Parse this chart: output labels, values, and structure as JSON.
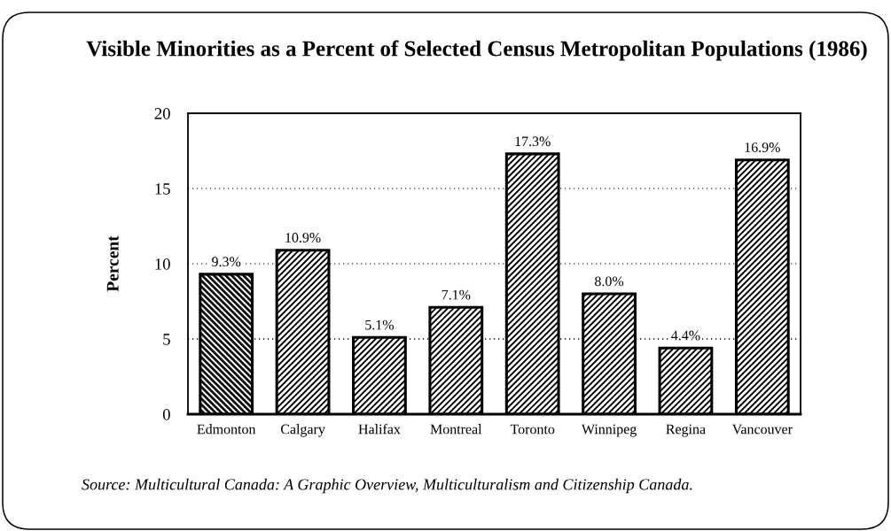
{
  "chart_data": {
    "type": "bar",
    "title": "Visible Minorities as a Percent of Selected Census Metropolitan Populations (1986)",
    "ylabel": "Percent",
    "categories": [
      "Edmonton",
      "Calgary",
      "Halifax",
      "Montreal",
      "Toronto",
      "Winnipeg",
      "Regina",
      "Vancouver"
    ],
    "values": [
      9.3,
      10.9,
      5.1,
      7.1,
      17.3,
      8.0,
      4.4,
      16.9
    ],
    "value_labels": [
      "9.3%",
      "10.9%",
      "5.1%",
      "7.1%",
      "17.3%",
      "8.0%",
      "4.4%",
      "16.9%"
    ],
    "colors": [
      "#111111",
      "#ffffff",
      "#ffffff",
      "#ffffff",
      "#ffffff",
      "#ffffff",
      "#ffffff",
      "#ffffff"
    ],
    "ylim": [
      0,
      20
    ],
    "yticks": [
      0,
      5,
      10,
      15,
      20
    ],
    "grid": "y",
    "annotations": [
      "Source: Multicultural Canada: A Graphic Overview, Multiculturalism and Citizenship Canada."
    ]
  }
}
